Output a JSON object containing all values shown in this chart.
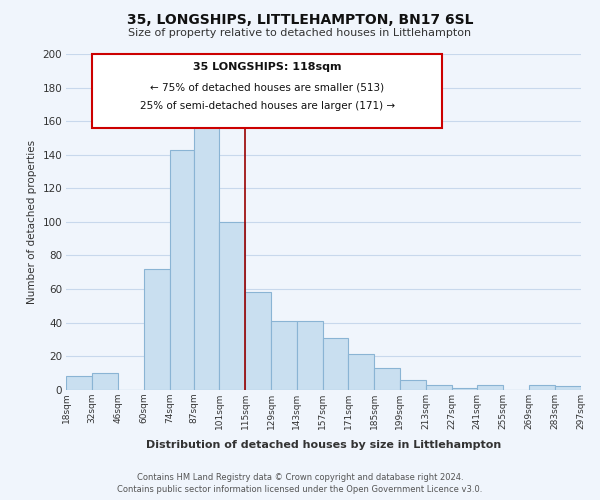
{
  "title": "35, LONGSHIPS, LITTLEHAMPTON, BN17 6SL",
  "subtitle": "Size of property relative to detached houses in Littlehampton",
  "xlabel": "Distribution of detached houses by size in Littlehampton",
  "ylabel": "Number of detached properties",
  "bar_color": "#c9dff0",
  "bar_edge_color": "#8ab4d4",
  "background_color": "#f0f5fc",
  "grid_color": "#c8d8ec",
  "vline_x": 115,
  "vline_color": "#990000",
  "bin_edges": [
    18,
    32,
    46,
    60,
    74,
    87,
    101,
    115,
    129,
    143,
    157,
    171,
    185,
    199,
    213,
    227,
    241,
    255,
    269,
    283,
    297
  ],
  "bin_labels": [
    "18sqm",
    "32sqm",
    "46sqm",
    "60sqm",
    "74sqm",
    "87sqm",
    "101sqm",
    "115sqm",
    "129sqm",
    "143sqm",
    "157sqm",
    "171sqm",
    "185sqm",
    "199sqm",
    "213sqm",
    "227sqm",
    "241sqm",
    "255sqm",
    "269sqm",
    "283sqm",
    "297sqm"
  ],
  "counts": [
    8,
    10,
    0,
    72,
    143,
    168,
    100,
    58,
    41,
    41,
    31,
    21,
    13,
    6,
    3,
    1,
    3,
    0,
    3,
    2,
    1
  ],
  "annotation_title": "35 LONGSHIPS: 118sqm",
  "annotation_line1": "← 75% of detached houses are smaller (513)",
  "annotation_line2": "25% of semi-detached houses are larger (171) →",
  "footer1": "Contains HM Land Registry data © Crown copyright and database right 2024.",
  "footer2": "Contains public sector information licensed under the Open Government Licence v3.0.",
  "ylim": [
    0,
    200
  ],
  "yticks": [
    0,
    20,
    40,
    60,
    80,
    100,
    120,
    140,
    160,
    180,
    200
  ]
}
